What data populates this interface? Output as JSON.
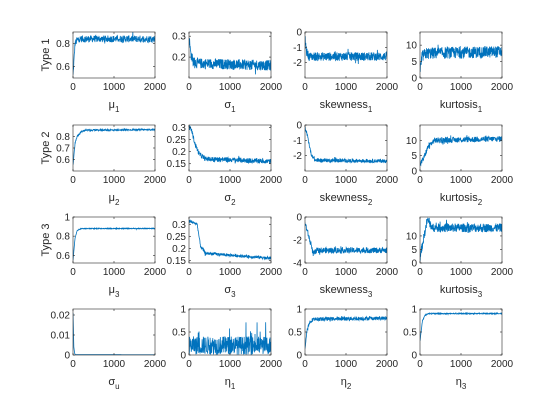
{
  "figure": {
    "row_labels": [
      "Type 1",
      "Type 2",
      "Type 3",
      ""
    ],
    "line_color": "#0072BD",
    "axis_color": "#262626"
  },
  "chart_data": [
    {
      "type": "line",
      "row": 0,
      "col": 0,
      "xlabel": "μ",
      "xsub": "1",
      "xlim": [
        0,
        2000
      ],
      "ylim": [
        0.5,
        0.9
      ],
      "xticks": [
        0,
        1000,
        2000
      ],
      "yticks": [
        0.6,
        0.8
      ],
      "ytick_labels": [
        "0.6",
        "0.8"
      ],
      "x": [
        0,
        50,
        100,
        150,
        200,
        2000
      ],
      "y": [
        0.52,
        0.8,
        0.83,
        0.84,
        0.84,
        0.84
      ],
      "noise": 0.03
    },
    {
      "type": "line",
      "row": 0,
      "col": 1,
      "xlabel": "σ",
      "xsub": "1",
      "xlim": [
        0,
        2000
      ],
      "ylim": [
        0.1,
        0.32
      ],
      "xticks": [
        0,
        1000,
        2000
      ],
      "yticks": [
        0.2,
        0.3
      ],
      "ytick_labels": [
        "0.2",
        "0.3"
      ],
      "x": [
        0,
        40,
        100,
        200,
        2000
      ],
      "y": [
        0.3,
        0.22,
        0.18,
        0.17,
        0.16
      ],
      "noise": 0.025
    },
    {
      "type": "line",
      "row": 0,
      "col": 2,
      "xlabel": "skewness",
      "xsub": "1",
      "xlim": [
        0,
        2000
      ],
      "ylim": [
        -3,
        0
      ],
      "xticks": [
        0,
        1000,
        2000
      ],
      "yticks": [
        -2,
        -1,
        0
      ],
      "ytick_labels": [
        "-2",
        "-1",
        "0"
      ],
      "x": [
        0,
        40,
        100,
        2000
      ],
      "y": [
        -0.4,
        -1.3,
        -1.6,
        -1.6
      ],
      "noise": 0.28
    },
    {
      "type": "line",
      "row": 0,
      "col": 3,
      "xlabel": "kurtosis",
      "xsub": "1",
      "xlim": [
        0,
        2000
      ],
      "ylim": [
        0,
        14
      ],
      "xticks": [
        0,
        1000,
        2000
      ],
      "yticks": [
        0,
        5,
        10
      ],
      "ytick_labels": [
        "0",
        "5",
        "10"
      ],
      "x": [
        0,
        50,
        150,
        2000
      ],
      "y": [
        2,
        6.5,
        7.5,
        8
      ],
      "noise": 1.8
    },
    {
      "type": "line",
      "row": 1,
      "col": 0,
      "xlabel": "μ",
      "xsub": "2",
      "xlim": [
        0,
        2000
      ],
      "ylim": [
        0.5,
        0.9
      ],
      "xticks": [
        0,
        1000,
        2000
      ],
      "yticks": [
        0.6,
        0.7,
        0.8
      ],
      "ytick_labels": [
        "0.6",
        "0.7",
        "0.8"
      ],
      "x": [
        0,
        50,
        100,
        200,
        300,
        2000
      ],
      "y": [
        0.55,
        0.74,
        0.8,
        0.84,
        0.855,
        0.86
      ],
      "noise": 0.006
    },
    {
      "type": "line",
      "row": 1,
      "col": 1,
      "xlabel": "σ",
      "xsub": "2",
      "xlim": [
        0,
        2000
      ],
      "ylim": [
        0.12,
        0.31
      ],
      "xticks": [
        0,
        1000,
        2000
      ],
      "yticks": [
        0.15,
        0.2,
        0.25,
        0.3
      ],
      "ytick_labels": [
        "0.15",
        "0.2",
        "0.25",
        "0.3"
      ],
      "x": [
        0,
        60,
        150,
        250,
        400,
        2000
      ],
      "y": [
        0.3,
        0.29,
        0.23,
        0.19,
        0.17,
        0.16
      ],
      "noise": 0.01
    },
    {
      "type": "line",
      "row": 1,
      "col": 2,
      "xlabel": "skewness",
      "xsub": "2",
      "xlim": [
        0,
        2000
      ],
      "ylim": [
        -3,
        0
      ],
      "xticks": [
        0,
        1000,
        2000
      ],
      "yticks": [
        -2,
        -1,
        0
      ],
      "ytick_labels": [
        "-2",
        "-1",
        "0"
      ],
      "x": [
        0,
        60,
        150,
        250,
        2000
      ],
      "y": [
        -0.2,
        -0.7,
        -1.9,
        -2.3,
        -2.35
      ],
      "noise": 0.12
    },
    {
      "type": "line",
      "row": 1,
      "col": 3,
      "xlabel": "kurtosis",
      "xsub": "2",
      "xlim": [
        0,
        2000
      ],
      "ylim": [
        0,
        15
      ],
      "xticks": [
        0,
        1000,
        2000
      ],
      "yticks": [
        0,
        5,
        10
      ],
      "ytick_labels": [
        "0",
        "5",
        "10"
      ],
      "x": [
        0,
        100,
        200,
        350,
        2000
      ],
      "y": [
        2,
        4.5,
        8,
        10,
        10.5
      ],
      "noise": 0.9
    },
    {
      "type": "line",
      "row": 2,
      "col": 0,
      "xlabel": "μ",
      "xsub": "3",
      "xlim": [
        0,
        2000
      ],
      "ylim": [
        0.52,
        1.0
      ],
      "xticks": [
        0,
        1000,
        2000
      ],
      "yticks": [
        0.6,
        0.8,
        1
      ],
      "ytick_labels": [
        "0.6",
        "0.8",
        "1"
      ],
      "x": [
        0,
        50,
        100,
        200,
        2000
      ],
      "y": [
        0.55,
        0.78,
        0.86,
        0.88,
        0.88
      ],
      "noise": 0.004
    },
    {
      "type": "line",
      "row": 2,
      "col": 1,
      "xlabel": "σ",
      "xsub": "3",
      "xlim": [
        0,
        2000
      ],
      "ylim": [
        0.14,
        0.33
      ],
      "xticks": [
        0,
        1000,
        2000
      ],
      "yticks": [
        0.15,
        0.2,
        0.25,
        0.3
      ],
      "ytick_labels": [
        "0.15",
        "0.2",
        "0.25",
        "0.3"
      ],
      "x": [
        0,
        200,
        280,
        400,
        2000
      ],
      "y": [
        0.315,
        0.3,
        0.21,
        0.18,
        0.16
      ],
      "noise": 0.006
    },
    {
      "type": "line",
      "row": 2,
      "col": 2,
      "xlabel": "skewness",
      "xsub": "3",
      "xlim": [
        0,
        2000
      ],
      "ylim": [
        -4,
        0
      ],
      "xticks": [
        0,
        1000,
        2000
      ],
      "yticks": [
        -4,
        -2,
        0
      ],
      "ytick_labels": [
        "-4",
        "-2",
        "0"
      ],
      "x": [
        0,
        100,
        200,
        300,
        2000
      ],
      "y": [
        -0.5,
        -1.8,
        -3.2,
        -2.9,
        -2.9
      ],
      "noise": 0.25
    },
    {
      "type": "line",
      "row": 2,
      "col": 3,
      "xlabel": "kurtosis",
      "xsub": "3",
      "xlim": [
        0,
        2000
      ],
      "ylim": [
        0,
        17
      ],
      "xticks": [
        0,
        1000,
        2000
      ],
      "yticks": [
        0,
        5,
        10
      ],
      "ytick_labels": [
        "0",
        "5",
        "10"
      ],
      "x": [
        0,
        100,
        180,
        300,
        2000
      ],
      "y": [
        2,
        10,
        16,
        13,
        13
      ],
      "noise": 1.6
    },
    {
      "type": "line",
      "row": 3,
      "col": 0,
      "xlabel": "σ",
      "xsub": "u",
      "xlim": [
        0,
        2000
      ],
      "ylim": [
        0,
        0.023
      ],
      "xticks": [
        0,
        1000,
        2000
      ],
      "yticks": [
        0,
        0.01,
        0.02
      ],
      "ytick_labels": [
        "0",
        "0.01",
        "0.02"
      ],
      "x": [
        0,
        20,
        40,
        60,
        2000
      ],
      "y": [
        0.021,
        0.004,
        0.0008,
        0.0002,
        0.0001
      ],
      "noise": 0.0
    },
    {
      "type": "line",
      "row": 3,
      "col": 1,
      "xlabel": "η",
      "xsub": "1",
      "xlim": [
        0,
        2000
      ],
      "ylim": [
        0,
        1
      ],
      "xticks": [
        0,
        1000,
        2000
      ],
      "yticks": [
        0,
        0.5,
        1
      ],
      "ytick_labels": [
        "0",
        "0.5",
        "1"
      ],
      "x": [
        0,
        2000
      ],
      "y": [
        0.2,
        0.2
      ],
      "noise": 0.18,
      "spiky": true
    },
    {
      "type": "line",
      "row": 3,
      "col": 2,
      "xlabel": "η",
      "xsub": "2",
      "xlim": [
        0,
        2000
      ],
      "ylim": [
        0,
        1
      ],
      "xticks": [
        0,
        1000,
        2000
      ],
      "yticks": [
        0,
        0.5,
        1
      ],
      "ytick_labels": [
        "0",
        "0.5",
        "1"
      ],
      "x": [
        0,
        50,
        120,
        200,
        2000
      ],
      "y": [
        0.15,
        0.55,
        0.72,
        0.78,
        0.8
      ],
      "noise": 0.04
    },
    {
      "type": "line",
      "row": 3,
      "col": 3,
      "xlabel": "η",
      "xsub": "3",
      "xlim": [
        0,
        2000
      ],
      "ylim": [
        0,
        1
      ],
      "xticks": [
        0,
        1000,
        2000
      ],
      "yticks": [
        0,
        0.5,
        1
      ],
      "ytick_labels": [
        "0",
        "0.5",
        "1"
      ],
      "x": [
        0,
        60,
        120,
        200,
        2000
      ],
      "y": [
        0.3,
        0.75,
        0.86,
        0.9,
        0.9
      ],
      "noise": 0.01
    }
  ]
}
